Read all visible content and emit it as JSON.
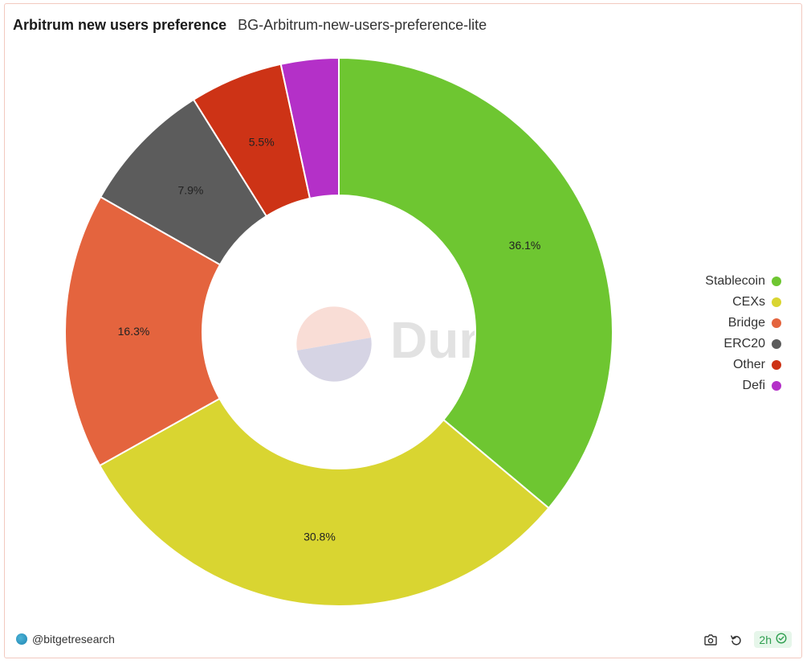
{
  "header": {
    "title": "Arbitrum new users preference",
    "subtitle": "BG-Arbitrum-new-users-preference-lite"
  },
  "chart_data": {
    "type": "pie",
    "donut": true,
    "categories": [
      "Stablecoin",
      "CEXs",
      "Bridge",
      "ERC20",
      "Other",
      "Defi"
    ],
    "values": [
      36.1,
      30.8,
      16.3,
      7.9,
      5.5,
      3.4
    ],
    "data_labels": [
      "36.1%",
      "30.8%",
      "16.3%",
      "7.9%",
      "5.5%",
      ""
    ],
    "colors": [
      "#6ec631",
      "#d9d531",
      "#e4643e",
      "#5c5c5c",
      "#cd3316",
      "#b430c8"
    ],
    "legend_placement": "right",
    "start": "top",
    "direction": "clockwise"
  },
  "watermark": {
    "text": "Dune",
    "colors": {
      "top": "#f9ddd6",
      "bottom": "#d6d4e4",
      "text": "#e2e2e2"
    }
  },
  "footer": {
    "author": "@bitgetresearch",
    "refresh_badge": "2h",
    "icons": [
      "camera-icon",
      "refresh-icon",
      "check-circle-icon"
    ]
  }
}
